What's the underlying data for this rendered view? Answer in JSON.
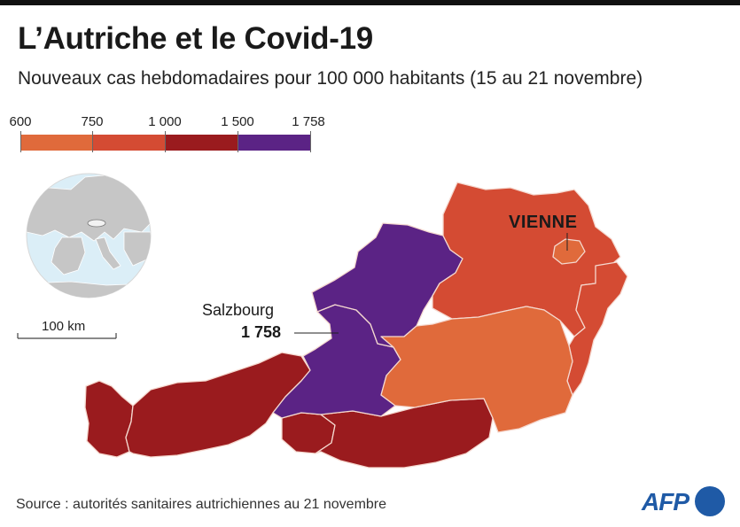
{
  "title": "L’Autriche et le Covid-19",
  "subtitle": "Nouveaux cas hebdomadaires pour 100 000 habitants (15 au 21 novembre)",
  "legend": {
    "breaks": [
      "600",
      "750",
      "1 000",
      "1 500",
      "1 758"
    ],
    "colors": [
      "#e06a3b",
      "#d44b33",
      "#9a1b1e",
      "#5b2385"
    ]
  },
  "locator": {
    "scale_label": "100 km"
  },
  "labels": {
    "vienna": "VIENNE",
    "salzburg": "Salzbourg",
    "salzburg_value": "1 758"
  },
  "source": "Source : autorités sanitaires autrichiennes au 21 novembre",
  "logo": "AFP",
  "colors": {
    "class_600_750": "#e06a3b",
    "class_750_1000": "#d44b33",
    "class_1000_1500": "#9a1b1e",
    "class_1500_1758": "#5b2385",
    "globe_sea": "#dbeef7",
    "globe_land": "#c6c6c6"
  }
}
